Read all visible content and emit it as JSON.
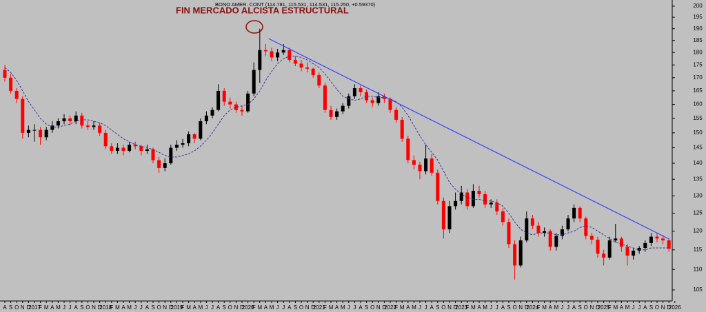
{
  "chart_data": {
    "type": "candlestick",
    "header": "BONO AMER. CONT (114.781, 115.531, 114.531, 115.250, +0.59370)",
    "title": "FIN MERCADO ALCISTA ESTRUCTURAL",
    "background": "#c0c0c0",
    "up_color": "#000000",
    "down_color": "#ff0000",
    "log_scale": true,
    "ylim": [
      102.4,
      202.8
    ],
    "yticks": [
      105,
      110,
      115,
      120,
      125,
      130,
      135,
      140,
      145,
      150,
      155,
      160,
      165,
      170,
      175,
      180,
      185,
      190,
      195,
      200
    ],
    "categories": [
      "A",
      "S",
      "O",
      "N",
      "D",
      "2017",
      "F",
      "M",
      "A",
      "M",
      "J",
      "J",
      "A",
      "S",
      "O",
      "N",
      "D",
      "2018",
      "F",
      "M",
      "A",
      "M",
      "J",
      "J",
      "A",
      "S",
      "O",
      "N",
      "D",
      "2019",
      "F",
      "M",
      "A",
      "M",
      "J",
      "J",
      "A",
      "S",
      "O",
      "N",
      "D",
      "2020",
      "F",
      "M",
      "A",
      "M",
      "J",
      "J",
      "A",
      "S",
      "O",
      "N",
      "D",
      "2021",
      "F",
      "M",
      "A",
      "M",
      "J",
      "J",
      "A",
      "S",
      "O",
      "N",
      "D",
      "2022",
      "F",
      "M",
      "A",
      "M",
      "J",
      "J",
      "A",
      "S",
      "O",
      "N",
      "D",
      "2023",
      "F",
      "M",
      "A",
      "M",
      "J",
      "J",
      "A",
      "S",
      "O",
      "N",
      "D",
      "2024",
      "F",
      "M",
      "A",
      "M",
      "J",
      "J",
      "A",
      "S",
      "O",
      "N",
      "D",
      "2025",
      "F",
      "M",
      "A",
      "M",
      "J",
      "J",
      "A",
      "S",
      "O",
      "N",
      "D",
      "2026"
    ],
    "ohlc": [
      [
        173,
        175,
        168.5,
        170
      ],
      [
        170,
        171.5,
        164,
        165
      ],
      [
        165,
        166,
        160.5,
        162
      ],
      [
        162,
        163,
        148,
        150
      ],
      [
        150,
        152.5,
        148.5,
        151
      ],
      [
        151,
        153,
        147,
        151
      ],
      [
        151,
        152,
        146,
        148.5
      ],
      [
        148.5,
        152,
        147.5,
        151
      ],
      [
        151,
        154,
        150,
        152.5
      ],
      [
        152.5,
        155,
        151.5,
        154
      ],
      [
        154,
        156.5,
        153,
        155
      ],
      [
        155,
        156,
        152.5,
        154
      ],
      [
        154,
        157.5,
        153,
        156
      ],
      [
        156,
        157,
        151.5,
        152.5
      ],
      [
        152.5,
        154,
        151,
        152
      ],
      [
        152,
        154,
        151,
        152.5
      ],
      [
        152.5,
        153.5,
        149,
        150
      ],
      [
        150,
        151,
        144.5,
        145.5
      ],
      [
        145.5,
        146.5,
        143,
        144
      ],
      [
        144,
        146.5,
        143,
        145
      ],
      [
        145,
        146,
        142.5,
        144
      ],
      [
        144,
        147,
        143.5,
        146
      ],
      [
        146,
        147,
        144.5,
        145.5
      ],
      [
        145.5,
        146,
        142.5,
        144
      ],
      [
        144,
        146,
        143,
        144.5
      ],
      [
        144.5,
        145,
        140,
        141
      ],
      [
        141,
        142,
        137,
        138.5
      ],
      [
        138.5,
        141.5,
        137.5,
        140
      ],
      [
        140,
        146,
        139.5,
        145
      ],
      [
        145,
        147.5,
        144,
        146
      ],
      [
        146,
        148,
        145,
        146.5
      ],
      [
        146.5,
        150.5,
        145.5,
        149.5
      ],
      [
        149.5,
        150,
        146.5,
        148
      ],
      [
        148,
        155,
        147.5,
        154
      ],
      [
        154,
        157.5,
        153,
        156
      ],
      [
        156,
        159,
        155,
        158
      ],
      [
        158,
        167.5,
        157.5,
        165
      ],
      [
        165,
        166,
        159.5,
        161
      ],
      [
        161,
        162.5,
        158.5,
        160
      ],
      [
        160,
        161,
        157,
        158
      ],
      [
        158,
        159.5,
        156,
        157.5
      ],
      [
        157.5,
        165,
        157,
        164
      ],
      [
        164,
        176,
        163,
        173
      ],
      [
        173,
        190,
        168,
        181
      ],
      [
        181,
        183.5,
        178.5,
        180.5
      ],
      [
        180.5,
        182,
        176.5,
        178
      ],
      [
        178,
        181.5,
        176.5,
        180
      ],
      [
        180,
        183.5,
        179,
        181
      ],
      [
        181,
        182,
        176,
        177
      ],
      [
        177,
        178.5,
        174.5,
        175.5
      ],
      [
        175.5,
        177,
        172.5,
        174
      ],
      [
        174,
        176,
        172,
        173.5
      ],
      [
        173.5,
        174,
        170,
        171
      ],
      [
        171,
        172,
        166,
        167
      ],
      [
        167,
        168,
        157,
        158
      ],
      [
        158,
        159.5,
        154.5,
        155.5
      ],
      [
        155.5,
        158.5,
        154.5,
        157.5
      ],
      [
        157.5,
        160.5,
        156.5,
        159.5
      ],
      [
        159.5,
        164,
        158.5,
        163
      ],
      [
        163,
        167.5,
        162,
        166
      ],
      [
        166,
        167,
        163,
        164.5
      ],
      [
        164.5,
        165.5,
        160.5,
        161.5
      ],
      [
        161.5,
        162.5,
        159,
        160.5
      ],
      [
        160.5,
        164.5,
        159.5,
        163
      ],
      [
        163,
        164,
        160.5,
        162
      ],
      [
        162,
        162.5,
        157,
        158
      ],
      [
        158,
        159,
        153.5,
        154.5
      ],
      [
        154.5,
        155.5,
        147,
        148
      ],
      [
        148,
        149,
        140,
        141
      ],
      [
        141,
        142.5,
        138,
        139.5
      ],
      [
        139.5,
        140.5,
        135,
        137.5
      ],
      [
        137.5,
        146,
        136.5,
        141.5
      ],
      [
        141.5,
        143,
        136,
        137
      ],
      [
        137,
        138,
        127.5,
        128.5
      ],
      [
        128.5,
        129.5,
        118,
        120.5
      ],
      [
        120.5,
        128.5,
        119.5,
        127
      ],
      [
        127,
        131,
        126,
        128.5
      ],
      [
        128.5,
        133,
        127.5,
        131
      ],
      [
        131,
        132,
        126,
        127
      ],
      [
        127,
        133.5,
        126.5,
        131.5
      ],
      [
        131.5,
        133,
        129.5,
        130.5
      ],
      [
        130.5,
        131.5,
        126.5,
        127.5
      ],
      [
        127.5,
        129,
        126.5,
        128
      ],
      [
        128,
        129,
        124.5,
        125.5
      ],
      [
        125.5,
        126.5,
        121.5,
        122.5
      ],
      [
        122.5,
        123.5,
        115.5,
        116.5
      ],
      [
        116.5,
        117.5,
        107.5,
        111
      ],
      [
        111,
        118.5,
        110.5,
        117.5
      ],
      [
        117.5,
        125.5,
        117,
        123.5
      ],
      [
        123.5,
        124.5,
        120.5,
        121.5
      ],
      [
        121.5,
        122.5,
        118.5,
        119.5
      ],
      [
        119.5,
        121,
        118.5,
        120
      ],
      [
        120,
        120.5,
        114.8,
        115.8
      ],
      [
        115.8,
        119.5,
        114.8,
        118.7
      ],
      [
        118.7,
        121.5,
        117.8,
        120.5
      ],
      [
        120.5,
        124.5,
        120,
        123.5
      ],
      [
        123.5,
        127.5,
        122.5,
        126.5
      ],
      [
        126.5,
        127,
        122.5,
        123.5
      ],
      [
        123.5,
        124,
        117.8,
        118.7
      ],
      [
        118.7,
        119.5,
        116.5,
        117.7
      ],
      [
        117.7,
        118.5,
        113,
        114
      ],
      [
        114,
        115,
        111,
        113
      ],
      [
        113,
        118.5,
        112.5,
        117.5
      ],
      [
        117.5,
        122,
        117,
        118
      ],
      [
        118,
        118.5,
        114.5,
        115.8
      ],
      [
        115.8,
        116.5,
        111,
        113.5
      ],
      [
        113.5,
        115.5,
        112.5,
        114.8
      ],
      [
        114.8,
        116,
        114,
        115.5
      ],
      [
        115.5,
        117.5,
        114.5,
        116.8
      ],
      [
        116.8,
        119.5,
        116,
        118.5
      ],
      [
        118.5,
        119.5,
        117,
        118
      ],
      [
        118,
        119,
        116.5,
        117.5
      ],
      [
        117.5,
        118,
        114.5,
        115.3
      ],
      null
    ],
    "ma": {
      "color": "#333399",
      "values": [
        174,
        172,
        169,
        165,
        161,
        158,
        155,
        153,
        152,
        152,
        152.5,
        153,
        154,
        154.5,
        154.5,
        154,
        153.5,
        152.5,
        151,
        149.5,
        148,
        147,
        146,
        145.5,
        145,
        144.5,
        143.5,
        142.5,
        142,
        142,
        142.5,
        143,
        144,
        145.5,
        147.5,
        150,
        153,
        156,
        158,
        159,
        159.5,
        160,
        162,
        165,
        169,
        172.5,
        175.5,
        177.5,
        178.5,
        178.5,
        178,
        177,
        175.5,
        174,
        171.5,
        168.5,
        165.5,
        163,
        162,
        161.5,
        162,
        163,
        163,
        162.5,
        162.5,
        162,
        161,
        159,
        156,
        152.5,
        149,
        146,
        143.5,
        141,
        137.5,
        134,
        132,
        130.5,
        129.5,
        129,
        129,
        128.5,
        128.5,
        128,
        127,
        125,
        122.5,
        120.5,
        119.5,
        119,
        119.5,
        119.5,
        119.5,
        119,
        119,
        119.5,
        120,
        121,
        121.5,
        121,
        120,
        119,
        118,
        117,
        116.5,
        116,
        115.5,
        115,
        115,
        115.5,
        115.5,
        115.5,
        115.5,
        null
      ]
    },
    "trendline": {
      "color": "#3344ff",
      "x": [
        44.5,
        112
      ],
      "values": [
        185.8,
        117.9
      ]
    }
  }
}
